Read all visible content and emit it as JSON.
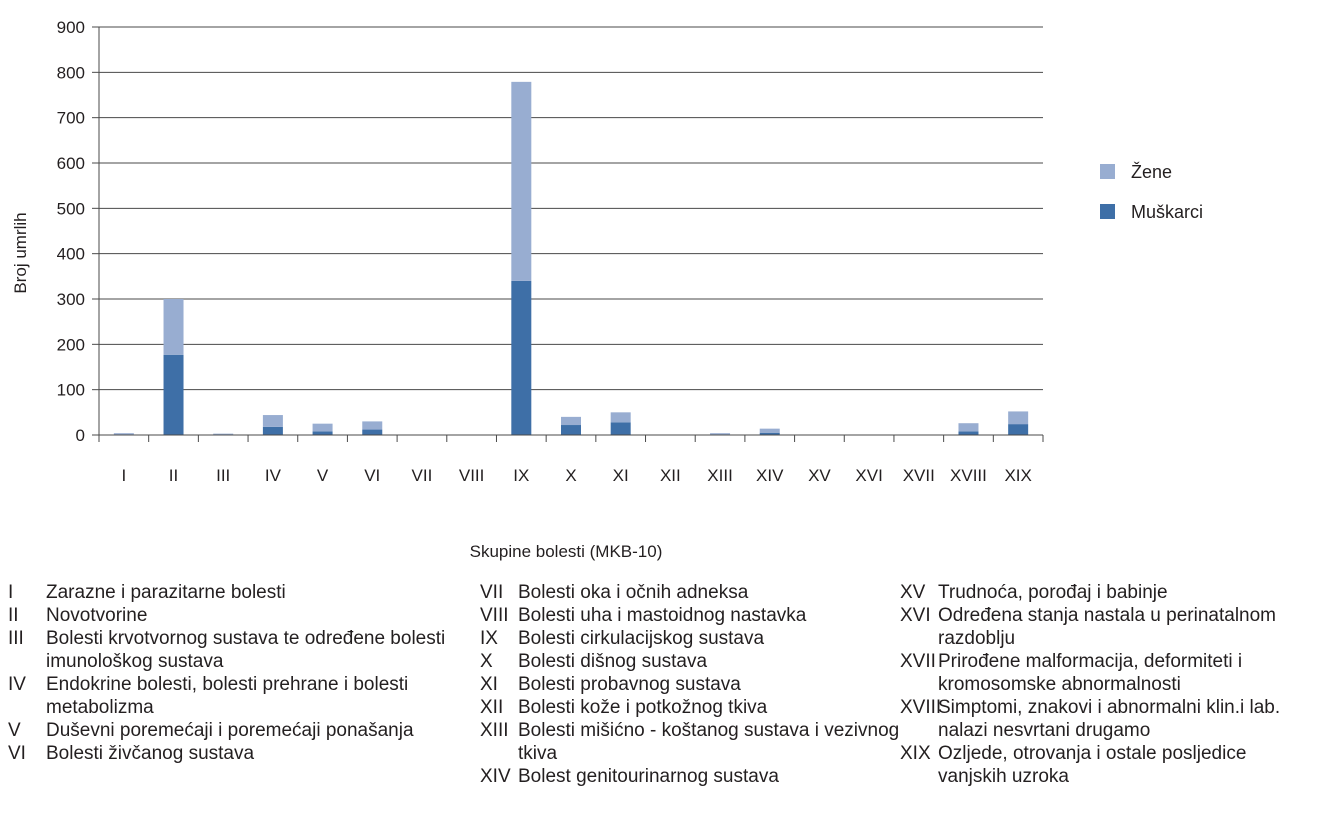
{
  "chart_data": {
    "type": "bar",
    "stacked": true,
    "categories": [
      "I",
      "II",
      "III",
      "IV",
      "V",
      "VI",
      "VII",
      "VIII",
      "IX",
      "X",
      "XI",
      "XII",
      "XIII",
      "XIV",
      "XV",
      "XVI",
      "XVII",
      "XVIII",
      "XIX"
    ],
    "series": [
      {
        "name": "Muškarci",
        "color": "#3e6fa7",
        "values": [
          1,
          177,
          1,
          18,
          8,
          12,
          0,
          0,
          340,
          22,
          28,
          0,
          1,
          5,
          0,
          0,
          0,
          8,
          24
        ]
      },
      {
        "name": "Žene",
        "color": "#98add1",
        "values": [
          3,
          123,
          2,
          26,
          17,
          18,
          0,
          0,
          439,
          18,
          22,
          1,
          3,
          9,
          0,
          0,
          0,
          18,
          28
        ]
      }
    ],
    "xlabel": "Skupine bolesti (MKB-10)",
    "ylabel": "Broj umrlih",
    "ylim": [
      0,
      900
    ],
    "yticks": [
      0,
      100,
      200,
      300,
      400,
      500,
      600,
      700,
      800,
      900
    ],
    "grid": true,
    "legend_position": "right",
    "legend_order": [
      "Žene",
      "Muškarci"
    ]
  },
  "key": {
    "col1": [
      {
        "code": "I",
        "desc": "Zarazne i parazitarne  bolesti"
      },
      {
        "code": "II",
        "desc": "Novotvorine"
      },
      {
        "code": "III",
        "desc": "Bolesti krvotvornog sustava te određene bolesti imunološkog sustava"
      },
      {
        "code": "IV",
        "desc": "Endokrine bolesti, bolesti prehrane i bolesti metabolizma"
      },
      {
        "code": "V",
        "desc": "Duševni poremećaji i poremećaji ponašanja"
      },
      {
        "code": "VI",
        "desc": "Bolesti živčanog sustava"
      }
    ],
    "col2": [
      {
        "code": "VII",
        "desc": "Bolesti oka i očnih adneksa"
      },
      {
        "code": "VIII",
        "desc": "Bolesti uha i mastoidnog nastavka"
      },
      {
        "code": "IX",
        "desc": "Bolesti cirkulacijskog sustava"
      },
      {
        "code": "X",
        "desc": "Bolesti dišnog sustava"
      },
      {
        "code": "XI",
        "desc": "Bolesti probavnog sustava"
      },
      {
        "code": "XII",
        "desc": "Bolesti kože i potkožnog tkiva"
      },
      {
        "code": "XIII",
        "desc": "Bolesti mišićno - koštanog sustava i vezivnog tkiva"
      },
      {
        "code": "XIV",
        "desc": "Bolest genitourinarnog sustava"
      }
    ],
    "col3": [
      {
        "code": "XV",
        "desc": "Trudnoća, porođaj i babinje"
      },
      {
        "code": "XVI",
        "desc": "Određena stanja nastala u perinatalnom razdoblju"
      },
      {
        "code": "XVII",
        "desc": "Prirođene malformacija, deformiteti i kromosomske abnormalnosti"
      },
      {
        "code": "XVIII",
        "desc": "Simptomi, znakovi i abnormalni klin.i lab. nalazi nesvrtani drugamo"
      },
      {
        "code": "XIX",
        "desc": "Ozljede, otrovanja i ostale posljedice vanjskih uzroka"
      }
    ]
  }
}
